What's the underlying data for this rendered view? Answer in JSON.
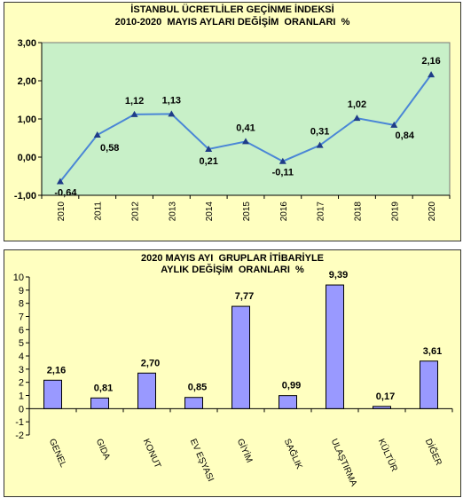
{
  "chart_data": [
    {
      "type": "line",
      "title": "İSTANBUL ÜCRETLİLER GEÇİNME İNDEKSİ",
      "subtitle": "2010-2020  MAYIS AYLARI DEĞİŞİM  ORANLARI  %",
      "xlabel": "",
      "ylabel": "",
      "x": [
        "2010",
        "2011",
        "2012",
        "2013",
        "2014",
        "2015",
        "2016",
        "2017",
        "2018",
        "2019",
        "2020"
      ],
      "values": [
        -0.64,
        0.58,
        1.12,
        1.13,
        0.21,
        0.41,
        -0.11,
        0.31,
        1.02,
        0.84,
        2.16
      ],
      "data_labels": [
        "-0,64",
        "0,58",
        "1,12",
        "1,13",
        "0,21",
        "0,41",
        "-0,11",
        "0,31",
        "1,02",
        "0,84",
        "2,16"
      ],
      "y_ticks": [
        "3,00",
        "2,00",
        "1,00",
        "0,00",
        "-1,00"
      ],
      "ylim": [
        -1,
        3
      ],
      "grid": false,
      "colors": {
        "line": "#4a86d6",
        "marker": "#1f3c88",
        "plot_bg": "#c8f0c8",
        "panel_bg": "#ffffc0"
      }
    },
    {
      "type": "bar",
      "title": "2020 MAYIS AYI  GRUPLAR İTİBARİYLE",
      "subtitle": "AYLIK DEĞİŞİM  ORANLARI  %",
      "xlabel": "",
      "ylabel": "",
      "categories": [
        "GENEL",
        "GIDA",
        "KONUT",
        "EV EŞYASI",
        "GİYİM",
        "SAĞLIK",
        "ULAŞTIRMA",
        "KÜLTÜR",
        "DİĞER"
      ],
      "values": [
        2.16,
        0.81,
        2.7,
        0.85,
        7.77,
        0.99,
        9.39,
        0.17,
        3.61
      ],
      "data_labels": [
        "2,16",
        "0,81",
        "2,70",
        "0,85",
        "7,77",
        "0,99",
        "9,39",
        "0,17",
        "3,61"
      ],
      "y_ticks": [
        "10",
        "9",
        "8",
        "7",
        "6",
        "5",
        "4",
        "3",
        "2",
        "1",
        "0",
        "-1",
        "-2"
      ],
      "ylim": [
        -2,
        10
      ],
      "grid": false,
      "colors": {
        "bar": "#9999ff",
        "bar_border": "#000000",
        "plot_bg": "#ffffc0",
        "panel_bg": "#ffffc0"
      }
    }
  ]
}
